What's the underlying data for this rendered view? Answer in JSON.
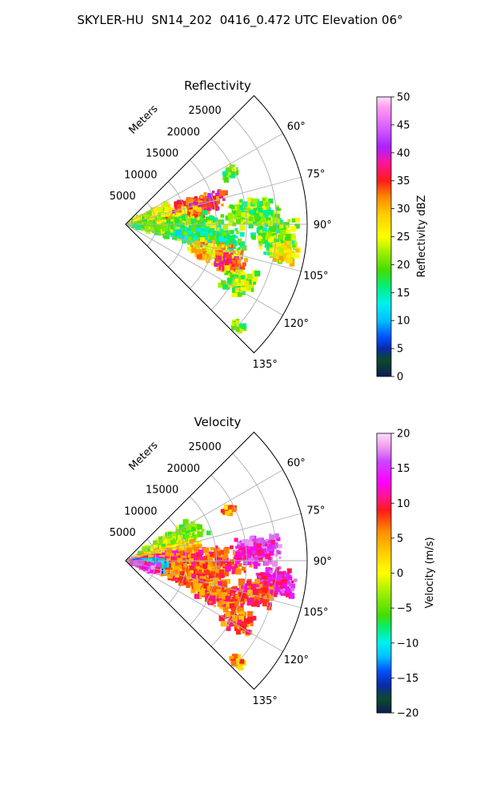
{
  "figure": {
    "suptitle": "SKYLER-HU  SN14_202  0416_0.472 UTC Elevation 06°"
  },
  "chart_data": [
    {
      "type": "polar-sector-radar",
      "title": "Reflectivity",
      "radial_axis_label": "Meters",
      "radial_ticks": [
        "5000",
        "10000",
        "15000",
        "20000",
        "25000"
      ],
      "radial_tick_values": [
        5000,
        10000,
        15000,
        20000,
        25000
      ],
      "r_range": [
        0,
        30000
      ],
      "theta_range_deg": [
        45,
        135
      ],
      "angle_ticks": [
        "60°",
        "75°",
        "90°",
        "105°",
        "120°",
        "135°"
      ],
      "angle_tick_values": [
        60,
        75,
        90,
        105,
        120,
        135
      ],
      "grid": true,
      "colorbar": {
        "label": "Reflectivity dBZ",
        "range": [
          0,
          50
        ],
        "tick_values": [
          0,
          5,
          10,
          15,
          20,
          25,
          30,
          35,
          40,
          45,
          50
        ],
        "tick_labels": [
          "0",
          "5",
          "10",
          "15",
          "20",
          "25",
          "30",
          "35",
          "40",
          "45",
          "50"
        ],
        "stops": [
          [
            0,
            "#0b1d54"
          ],
          [
            3,
            "#0b4a2c"
          ],
          [
            5,
            "#0a2aa8"
          ],
          [
            7,
            "#0050ff"
          ],
          [
            10,
            "#00bfff"
          ],
          [
            13,
            "#00f0f0"
          ],
          [
            16,
            "#00f080"
          ],
          [
            19,
            "#44dd00"
          ],
          [
            22,
            "#99ee00"
          ],
          [
            25,
            "#ffff00"
          ],
          [
            29,
            "#ffcc00"
          ],
          [
            32,
            "#ff8c00"
          ],
          [
            35,
            "#ff1a1a"
          ],
          [
            38,
            "#ff1493"
          ],
          [
            41,
            "#aa22ff"
          ],
          [
            45,
            "#dd66ff"
          ],
          [
            48,
            "#ff99ee"
          ],
          [
            50,
            "#ffddff"
          ]
        ]
      },
      "echo_cells": [
        {
          "theta": 75,
          "r": 11000,
          "dt": 9,
          "dr": 6500,
          "v": 36,
          "n": 220
        },
        {
          "theta": 82,
          "r": 9000,
          "dt": 8,
          "dr": 5000,
          "v": 30,
          "n": 160
        },
        {
          "theta": 95,
          "r": 9000,
          "dt": 14,
          "dr": 9000,
          "v": 20,
          "n": 420
        },
        {
          "theta": 100,
          "r": 14000,
          "dt": 8,
          "dr": 6000,
          "v": 16,
          "n": 260
        },
        {
          "theta": 108,
          "r": 16000,
          "dt": 8,
          "dr": 5000,
          "v": 28,
          "n": 180
        },
        {
          "theta": 110,
          "r": 18000,
          "dt": 5,
          "dr": 3000,
          "v": 36,
          "n": 90
        },
        {
          "theta": 85,
          "r": 21000,
          "dt": 7,
          "dr": 5000,
          "v": 20,
          "n": 160
        },
        {
          "theta": 95,
          "r": 25000,
          "dt": 9,
          "dr": 4000,
          "v": 20,
          "n": 200
        },
        {
          "theta": 100,
          "r": 26500,
          "dt": 4,
          "dr": 2500,
          "v": 26,
          "n": 90
        },
        {
          "theta": 117,
          "r": 21000,
          "dt": 7,
          "dr": 3000,
          "v": 22,
          "n": 110
        },
        {
          "theta": 64,
          "r": 19000,
          "dt": 3,
          "dr": 1500,
          "v": 20,
          "n": 30
        },
        {
          "theta": 132,
          "r": 25000,
          "dt": 2,
          "dr": 1500,
          "v": 20,
          "n": 25
        },
        {
          "theta": 70,
          "r": 4500,
          "dt": 10,
          "dr": 4000,
          "v": 24,
          "n": 180
        }
      ]
    },
    {
      "type": "polar-sector-radar",
      "title": "Velocity",
      "radial_axis_label": "Meters",
      "radial_ticks": [
        "5000",
        "10000",
        "15000",
        "20000",
        "25000"
      ],
      "radial_tick_values": [
        5000,
        10000,
        15000,
        20000,
        25000
      ],
      "r_range": [
        0,
        30000
      ],
      "theta_range_deg": [
        45,
        135
      ],
      "angle_ticks": [
        "60°",
        "75°",
        "90°",
        "105°",
        "120°",
        "135°"
      ],
      "angle_tick_values": [
        60,
        75,
        90,
        105,
        120,
        135
      ],
      "grid": true,
      "colorbar": {
        "label": "Velocity (m/s)",
        "range": [
          -20,
          20
        ],
        "tick_values": [
          -20,
          -15,
          -10,
          -5,
          0,
          5,
          10,
          15,
          20
        ],
        "tick_labels": [
          "−20",
          "−15",
          "−10",
          "−5",
          "0",
          "5",
          "10",
          "15",
          "20"
        ],
        "stops": [
          [
            -20,
            "#0b1d54"
          ],
          [
            -18,
            "#0b4a2c"
          ],
          [
            -16,
            "#0a2aa8"
          ],
          [
            -14,
            "#0050ff"
          ],
          [
            -12,
            "#00bfff"
          ],
          [
            -10,
            "#00f0f0"
          ],
          [
            -8,
            "#00f080"
          ],
          [
            -6,
            "#44dd00"
          ],
          [
            -3,
            "#99ee00"
          ],
          [
            0,
            "#ffff00"
          ],
          [
            3,
            "#ffcc00"
          ],
          [
            6,
            "#ff8c00"
          ],
          [
            9,
            "#ff1a1a"
          ],
          [
            11,
            "#ff1493"
          ],
          [
            13,
            "#ff00ff"
          ],
          [
            16,
            "#cc44ff"
          ],
          [
            18,
            "#ee99ee"
          ],
          [
            20,
            "#ffddff"
          ]
        ]
      },
      "echo_cells": [
        {
          "theta": 66,
          "r": 8000,
          "dt": 10,
          "dr": 6500,
          "v": -3,
          "n": 260
        },
        {
          "theta": 78,
          "r": 7000,
          "dt": 8,
          "dr": 6000,
          "v": 3,
          "n": 220
        },
        {
          "theta": 86,
          "r": 5500,
          "dt": 6,
          "dr": 5000,
          "v": 13,
          "n": 180
        },
        {
          "theta": 92,
          "r": 12000,
          "dt": 12,
          "dr": 9000,
          "v": 8,
          "n": 380
        },
        {
          "theta": 103,
          "r": 10000,
          "dt": 10,
          "dr": 8000,
          "v": 6,
          "n": 320
        },
        {
          "theta": 110,
          "r": 16000,
          "dt": 8,
          "dr": 5000,
          "v": 7,
          "n": 220
        },
        {
          "theta": 98,
          "r": 4000,
          "dt": 10,
          "dr": 3000,
          "v": -11,
          "n": 150
        },
        {
          "theta": 105,
          "r": 3500,
          "dt": 8,
          "dr": 3000,
          "v": 14,
          "n": 120
        },
        {
          "theta": 86,
          "r": 22000,
          "dt": 7,
          "dr": 4000,
          "v": 14,
          "n": 180
        },
        {
          "theta": 98,
          "r": 25000,
          "dt": 6,
          "dr": 3500,
          "v": 13,
          "n": 170
        },
        {
          "theta": 104,
          "r": 22000,
          "dt": 6,
          "dr": 3500,
          "v": 8,
          "n": 140
        },
        {
          "theta": 118,
          "r": 21000,
          "dt": 6,
          "dr": 3000,
          "v": 7,
          "n": 100
        },
        {
          "theta": 64,
          "r": 19000,
          "dt": 2,
          "dr": 1200,
          "v": 5,
          "n": 25
        },
        {
          "theta": 132,
          "r": 25000,
          "dt": 2,
          "dr": 1500,
          "v": 5,
          "n": 25
        }
      ]
    }
  ]
}
